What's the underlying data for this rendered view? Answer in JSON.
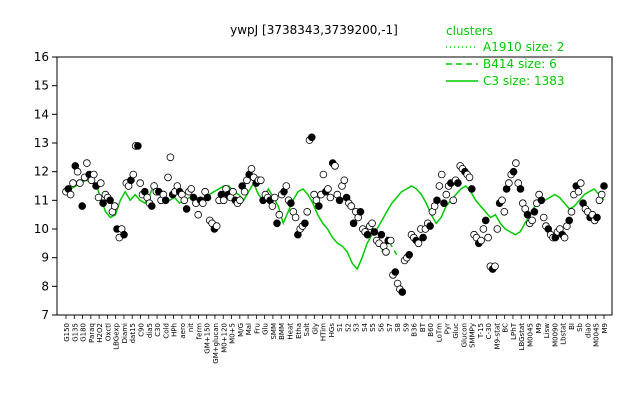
{
  "chart_data": {
    "type": "line",
    "title": "ywpJ [3738343,3739200,-1]",
    "xlabel": "",
    "ylabel": "",
    "ylim": [
      7,
      16
    ],
    "y_ticks": [
      7,
      8,
      9,
      10,
      11,
      12,
      13,
      14,
      15,
      16
    ],
    "grid": false,
    "legend": {
      "title": "clusters",
      "placement": "top-right",
      "color": "#00cc00",
      "entries": [
        {
          "label": "A1910 size: 2",
          "style": "dotted"
        },
        {
          "label": "B414 size: 6",
          "style": "dashed"
        },
        {
          "label": "C3 size: 1383",
          "style": "solid"
        }
      ]
    },
    "x_tick_labels": [
      "G150",
      "G135",
      "G180",
      "Paraq",
      "H2O2",
      "Oxctl",
      "LBGexp",
      "Diami",
      "dat15",
      "C90",
      "dia5",
      "C30",
      "Cold",
      "HPh",
      "aero",
      "nit",
      "ferm",
      "GM+150",
      "GM+glucan",
      "M0+120",
      "M0+5",
      "M/G",
      "Mal",
      "Fru",
      "Glu",
      "SMM",
      "BMM",
      "Heat",
      "Etha",
      "Salt",
      "Gly",
      "HTim",
      "HGs",
      "S1",
      "S2",
      "S3",
      "S4",
      "S5",
      "S6",
      "S7",
      "S8",
      "S9",
      "B36",
      "BT",
      "B60",
      "LoTm",
      "Pyr",
      "Gluc",
      "Glucon",
      "SMMPy",
      "T-15",
      "C-30",
      "M9-stat",
      "BC",
      "LPhT",
      "LBGstat",
      "M0045",
      "M9",
      "Lisw",
      "M0090",
      "Lbstat",
      "BI",
      "Sb",
      "dia0",
      "M0045",
      "M9"
    ],
    "y_min": 7,
    "y_max": 16,
    "series": [
      {
        "style": "solid",
        "values": [
          11.3,
          11.4,
          11.5,
          11.6,
          11.7,
          11.65,
          11.6,
          11.1,
          10.6,
          10.4,
          10.5,
          11.0,
          11.3,
          11.0,
          11.2,
          11.0,
          10.9,
          11.2,
          11.6,
          11.2,
          11.1,
          11.0,
          11.1,
          10.9,
          11.0,
          11.1,
          11.2,
          11.0,
          11.1,
          11.2,
          11.3,
          11.4,
          11.5,
          11.5,
          11.3,
          11.2,
          11.0,
          11.3,
          11.6,
          11.2,
          11.0,
          11.4,
          11.1,
          10.8,
          10.2,
          10.6,
          11.0,
          11.3,
          11.4,
          11.2,
          10.9,
          10.5,
          10.2,
          10.0,
          9.7,
          9.5,
          9.4,
          9.2,
          8.8,
          8.6,
          9.0,
          9.5,
          9.8,
          10.0,
          10.3,
          10.6,
          10.9,
          11.1,
          11.3,
          11.4,
          11.5,
          11.4,
          11.2,
          10.9,
          10.5,
          10.2,
          10.4,
          10.8,
          11.0,
          11.2,
          11.4,
          11.5,
          11.3,
          11.0,
          10.8,
          10.6,
          10.4,
          10.5,
          10.2,
          10.0,
          9.9,
          9.8,
          9.9,
          10.2,
          10.5,
          10.8,
          10.9,
          11.0,
          11.1,
          11.2,
          11.1,
          10.9,
          10.7,
          10.8,
          11.0,
          11.2,
          11.3,
          11.4,
          11.2,
          11.0
        ]
      },
      {
        "style": "dashed",
        "values": [
          null,
          null,
          null,
          null,
          null,
          null,
          null,
          null,
          null,
          null,
          null,
          null,
          null,
          null,
          null,
          null,
          null,
          null,
          null,
          null,
          null,
          null,
          null,
          null,
          null,
          null,
          null,
          null,
          null,
          null,
          null,
          null,
          null,
          null,
          null,
          null,
          null,
          null,
          null,
          null,
          null,
          null,
          null,
          null,
          null,
          null,
          null,
          null,
          null,
          null,
          null,
          null,
          null,
          null,
          null,
          null,
          null,
          null,
          null,
          null,
          null,
          null,
          null,
          null,
          9.2,
          9.7,
          9.4,
          9.1,
          null,
          null,
          null,
          null,
          null,
          null,
          null,
          null,
          null,
          null,
          null,
          null,
          null,
          null,
          null,
          null,
          null,
          null,
          null,
          null,
          null,
          null,
          null,
          null,
          null,
          null,
          null,
          null,
          null,
          null,
          null,
          null,
          null,
          null,
          null,
          null,
          null,
          null,
          null,
          null,
          null,
          null
        ]
      }
    ],
    "points": [
      11.3,
      11.4,
      11.2,
      11.6,
      12.2,
      12.0,
      11.6,
      10.8,
      11.8,
      12.3,
      11.9,
      11.7,
      11.9,
      11.5,
      11.1,
      11.6,
      10.9,
      11.2,
      11.1,
      11.0,
      10.6,
      10.8,
      10.0,
      9.7,
      10.0,
      9.8,
      11.6,
      11.5,
      11.7,
      11.9,
      12.9,
      12.9,
      11.6,
      11.2,
      11.3,
      11.1,
      10.9,
      10.8,
      11.5,
      11.3,
      11.3,
      11.0,
      11.2,
      11.0,
      11.8,
      12.5,
      11.2,
      11.3,
      11.5,
      11.3,
      11.2,
      11.0,
      10.7,
      11.3,
      11.4,
      11.1,
      10.9,
      10.5,
      11.0,
      10.9,
      11.3,
      11.1,
      10.3,
      10.2,
      10.0,
      10.1,
      11.0,
      11.2,
      11.0,
      11.4,
      11.2,
      11.1,
      11.3,
      11.0,
      10.9,
      11.0,
      11.5,
      11.3,
      11.7,
      11.9,
      12.1,
      11.8,
      11.6,
      11.7,
      11.7,
      11.0,
      11.2,
      11.1,
      11.0,
      10.8,
      11.1,
      10.2,
      10.5,
      11.2,
      11.3,
      11.5,
      11.0,
      10.9,
      10.6,
      10.4,
      9.8,
      10.0,
      10.1,
      10.2,
      10.6,
      13.1,
      13.2,
      11.2,
      11.0,
      10.8,
      11.2,
      11.9,
      11.3,
      11.4,
      11.1,
      12.3,
      12.2,
      11.2,
      11.0,
      11.5,
      11.7,
      11.1,
      10.9,
      10.8,
      10.2,
      10.6,
      10.4,
      10.6,
      10.0,
      9.9,
      9.8,
      10.1,
      10.2,
      9.9,
      9.6,
      9.5,
      9.8,
      9.4,
      9.2,
      9.6,
      9.6,
      8.4,
      8.5,
      8.1,
      7.9,
      7.8,
      8.9,
      9.0,
      9.1,
      9.8,
      9.7,
      9.6,
      9.5,
      10.0,
      9.7,
      10.0,
      10.2,
      10.1,
      10.6,
      10.8,
      11.0,
      11.5,
      11.9,
      10.9,
      11.2,
      11.5,
      11.6,
      11.0,
      11.7,
      11.6,
      12.2,
      12.1,
      12.0,
      11.9,
      11.8,
      11.4,
      9.8,
      9.7,
      9.5,
      9.6,
      10.0,
      10.3,
      9.7,
      8.7,
      8.6,
      8.7,
      10.0,
      10.9,
      11.0,
      10.6,
      11.4,
      11.6,
      11.9,
      12.0,
      12.3,
      11.6,
      11.4,
      10.9,
      10.7,
      10.5,
      10.2,
      10.3,
      10.6,
      10.9,
      11.2,
      11.0,
      10.4,
      10.1,
      10.0,
      9.8,
      9.7,
      9.7,
      9.9,
      10.0,
      9.8,
      9.7,
      10.1,
      10.3,
      10.6,
      11.2,
      11.5,
      11.3,
      11.6,
      10.9,
      10.7,
      10.6,
      10.4,
      10.5,
      10.3,
      10.4,
      11.0,
      11.2,
      11.5
    ]
  }
}
